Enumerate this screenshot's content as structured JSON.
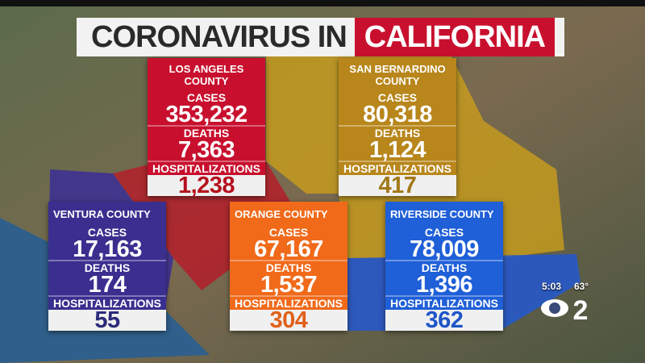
{
  "header": {
    "title_lead": "CORONAVIRUS IN",
    "title_highlight": "CALIFORNIA"
  },
  "counties": [
    {
      "name": "LOS ANGELES COUNTY",
      "rows": [
        {
          "label": "CASES",
          "value": "353,232"
        },
        {
          "label": "DEATHS",
          "value": "7,363"
        },
        {
          "label": "HOSPITALIZATIONS",
          "value": "1,238"
        }
      ]
    },
    {
      "name": "SAN BERNARDINO COUNTY",
      "rows": [
        {
          "label": "CASES",
          "value": "80,318"
        },
        {
          "label": "DEATHS",
          "value": "1,124"
        },
        {
          "label": "HOSPITALIZATIONS",
          "value": "417"
        }
      ]
    },
    {
      "name": "VENTURA COUNTY",
      "rows": [
        {
          "label": "CASES",
          "value": "17,163"
        },
        {
          "label": "DEATHS",
          "value": "174"
        },
        {
          "label": "HOSPITALIZATIONS",
          "value": "55"
        }
      ]
    },
    {
      "name": "ORANGE COUNTY",
      "rows": [
        {
          "label": "CASES",
          "value": "67,167"
        },
        {
          "label": "DEATHS",
          "value": "1,537"
        },
        {
          "label": "HOSPITALIZATIONS",
          "value": "304"
        }
      ]
    },
    {
      "name": "RIVERSIDE COUNTY",
      "rows": [
        {
          "label": "CASES",
          "value": "78,009"
        },
        {
          "label": "DEATHS",
          "value": "1,396"
        },
        {
          "label": "HOSPITALIZATIONS",
          "value": "362"
        }
      ]
    }
  ],
  "bug": {
    "time": "5:03",
    "temperature": "63°",
    "channel": "2"
  }
}
